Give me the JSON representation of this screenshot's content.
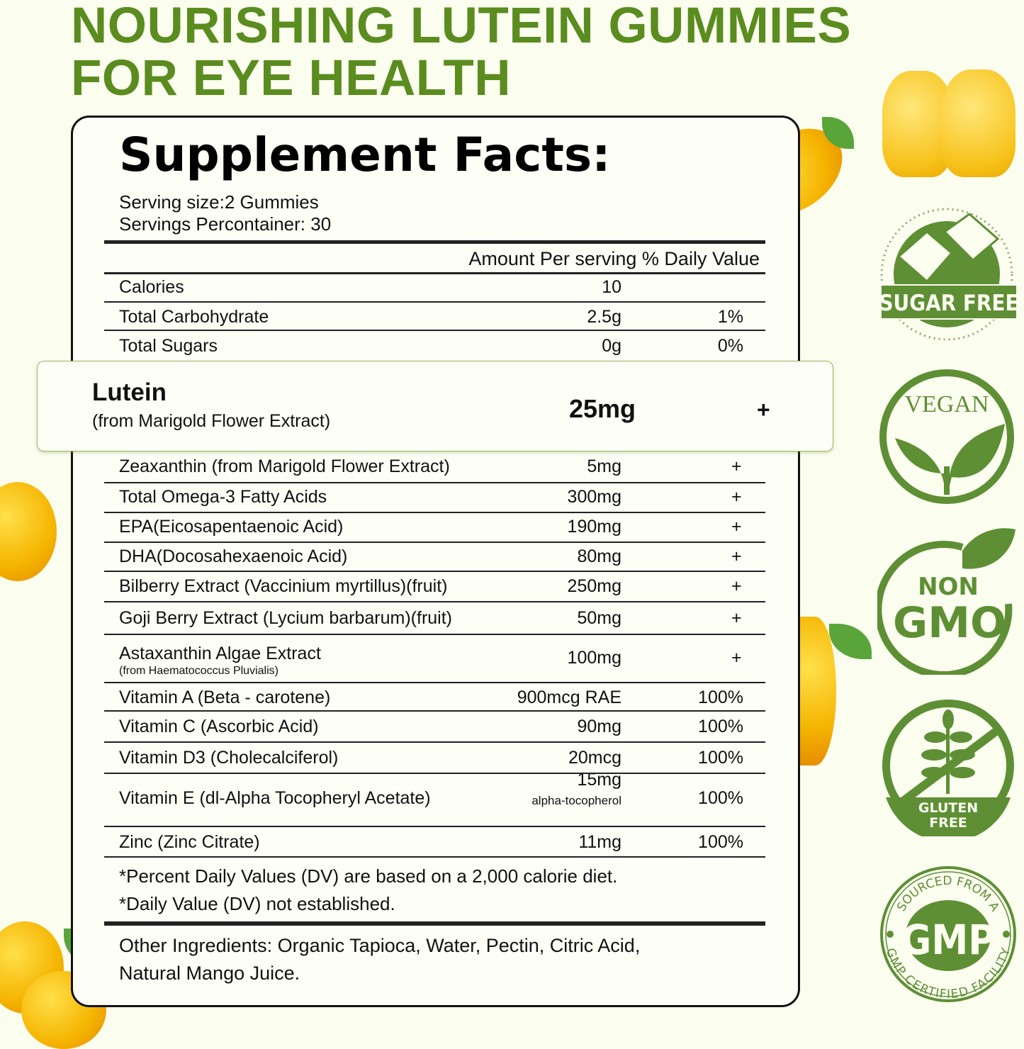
{
  "headline": {
    "line1": "NOURISHING LUTEIN GUMMIES",
    "line2": "FOR EYE HEALTH"
  },
  "facts": {
    "title": "Supplement Facts:",
    "serving_size": "Serving size:2 Gummies",
    "servings_per_container": "Servings Percontainer: 30",
    "header": "Amount Per serving % Daily Value",
    "top_rows": [
      {
        "name": "Calories",
        "amount": "10",
        "dv": ""
      },
      {
        "name": "Total Carbohydrate",
        "amount": "2.5g",
        "dv": "1%"
      },
      {
        "name": "Total Sugars",
        "amount": "0g",
        "dv": "0%"
      }
    ],
    "highlight": {
      "name": "Lutein",
      "sub": "(from Marigold Flower Extract)",
      "amount": "25mg",
      "dv": "+"
    },
    "rows": [
      {
        "name": "Zeaxanthin (from Marigold Flower Extract)",
        "amount": "5mg",
        "dv": "+"
      },
      {
        "name": "Total Omega-3 Fatty Acids",
        "amount": "300mg",
        "dv": "+"
      },
      {
        "name": "EPA(Eicosapentaenoic Acid)",
        "amount": "190mg",
        "dv": "+"
      },
      {
        "name": "DHA(Docosahexaenoic Acid)",
        "amount": "80mg",
        "dv": "+"
      },
      {
        "name": "Bilberry Extract (Vaccinium myrtillus)(fruit)",
        "amount": "250mg",
        "dv": "+"
      },
      {
        "name": "Goji Berry Extract (Lycium barbarum)(fruit)",
        "amount": "50mg",
        "dv": "+"
      },
      {
        "name": "Astaxanthin Algae Extract",
        "sub": "(from Haematococcus Pluvialis)",
        "amount": "100mg",
        "dv": "+"
      },
      {
        "name": "Vitamin A (Beta - carotene)",
        "amount": "900mcg RAE",
        "dv": "100%"
      },
      {
        "name": "Vitamin C (Ascorbic Acid)",
        "amount": "90mg",
        "dv": "100%"
      },
      {
        "name": "Vitamin D3 (Cholecalciferol)",
        "amount": "20mcg",
        "dv": "100%"
      },
      {
        "name": "Vitamin E (dl-Alpha Tocopheryl Acetate)",
        "amount": "15mg",
        "amount_sub": "alpha-tocopherol",
        "dv": "100%"
      },
      {
        "name": "Zinc (Zinc Citrate)",
        "amount": "11mg",
        "dv": "100%"
      }
    ],
    "footnote1": "*Percent Daily Values (DV) are based on a 2,000 calorie diet.",
    "footnote2": "*Daily Value (DV) not established.",
    "other1": "Other Ingredients: Organic Tapioca, Water, Pectin, Citric Acid,",
    "other2": "Natural Mango Juice."
  },
  "badges": {
    "sugar_free": "SUGAR FREE",
    "vegan": "VEGAN",
    "non": "NON",
    "gmo": "GMO",
    "gluten": "GLUTEN",
    "gluten_free": "FREE",
    "gmp": "GMP",
    "gmp_top": "SOURCED FROM A",
    "gmp_bottom": "GMP CERTIFIED FACILITY"
  },
  "colors": {
    "brand_green": "#5b8c1f",
    "badge_green": "#5e8f35",
    "background": "#fbfdef"
  }
}
